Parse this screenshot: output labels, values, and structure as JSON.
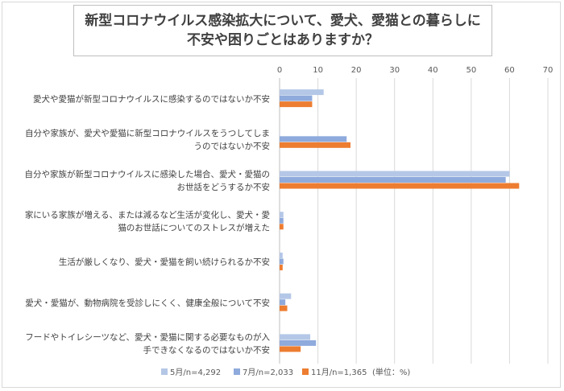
{
  "title_lines": [
    "新型コロナウイルス感染拡大について、愛犬、愛猫との暮らしに",
    "不安や困りごとはありますか？"
  ],
  "chart_data": {
    "type": "bar",
    "orientation": "horizontal",
    "title": "新型コロナウイルス感染拡大について、愛犬、愛猫との暮らしに不安や困りごとはありますか？",
    "categories": [
      [
        "愛犬や愛猫が新型コロナウイルスに感染するのではないか不安"
      ],
      [
        "自分や家族が、愛犬や愛猫に新型コロナウイルスをうつしてしま",
        "うのではないか不安"
      ],
      [
        "自分や家族が新型コロナウイルスに感染した場合、愛犬・愛猫の",
        "お世話をどうするか不安"
      ],
      [
        "家にいる家族が増える、または減るなど生活が変化し、愛犬・愛",
        "猫のお世話についてのストレスが増えた"
      ],
      [
        "生活が厳しくなり、愛犬・愛猫を飼い続けられるか不安"
      ],
      [
        "愛犬・愛猫が、動物病院を受診しにくく、健康全般について不安"
      ],
      [
        "フードやトイレシーツなど、愛犬・愛猫に関する必要なものが入",
        "手できなくなるのではないか不安"
      ]
    ],
    "series": [
      {
        "name": "5月/n=4,292",
        "color": "#b4c7e7",
        "values": [
          11.5,
          0.1,
          60.0,
          1.0,
          0.8,
          3.0,
          8.0
        ]
      },
      {
        "name": "7月/n=2,033",
        "color": "#8faadc",
        "values": [
          8.5,
          17.5,
          59.0,
          1.0,
          1.0,
          1.5,
          9.5
        ]
      },
      {
        "name": "11月/n=1,365",
        "color": "#ed7d31",
        "values": [
          8.5,
          18.5,
          62.5,
          1.0,
          0.8,
          2.0,
          5.5
        ]
      }
    ],
    "xlim": [
      0,
      70
    ],
    "xticks": [
      "0",
      "10",
      "20",
      "30",
      "40",
      "50",
      "60",
      "70"
    ],
    "grid": true,
    "unit_note": "(単位：%)",
    "legend_position": "bottom"
  }
}
